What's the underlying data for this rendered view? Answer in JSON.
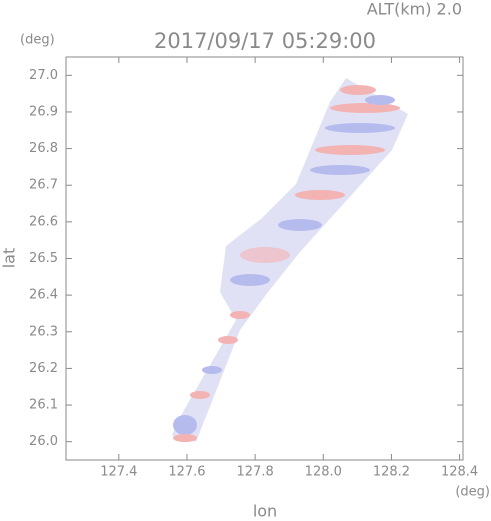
{
  "chart_data": {
    "type": "swath",
    "title": "2017/09/17 05:29:00",
    "annotation": "ALT(km) 2.0",
    "y_unit": "(deg)",
    "x_unit": "(deg)",
    "xlabel": "lon",
    "ylabel": "lat",
    "xlim": [
      127.245,
      128.41
    ],
    "ylim": [
      25.95,
      27.05
    ],
    "xticks": [
      127.4,
      127.6,
      127.8,
      {
        "value": 128,
        "label": "128.0"
      },
      128.2,
      128.4
    ],
    "yticks": [
      {
        "value": 26,
        "label": "26.0"
      },
      26.1,
      26.2,
      26.3,
      26.4,
      26.5,
      26.6,
      26.7,
      26.8,
      26.9,
      {
        "value": 27,
        "label": "27.0"
      }
    ]
  }
}
